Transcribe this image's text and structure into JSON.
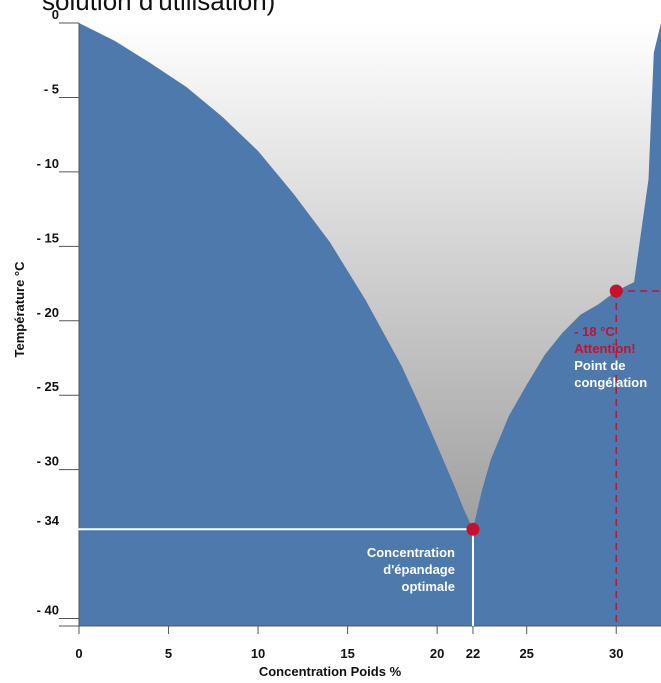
{
  "header": {
    "partial_title": "solution d'utilisation)"
  },
  "chart_data": {
    "type": "area",
    "xlabel": "Concentration Poids %",
    "ylabel": "Température °C",
    "x_ticks": [
      0,
      5,
      10,
      15,
      20,
      22,
      25,
      30
    ],
    "y_ticks": [
      {
        "value": 0,
        "label": "0"
      },
      {
        "value": -5,
        "label": "- 5"
      },
      {
        "value": -10,
        "label": "- 10"
      },
      {
        "value": -15,
        "label": "- 15"
      },
      {
        "value": -20,
        "label": "- 20"
      },
      {
        "value": -25,
        "label": "- 25"
      },
      {
        "value": -30,
        "label": "- 30"
      },
      {
        "value": -34,
        "label": "- 34"
      },
      {
        "value": -40,
        "label": "- 40"
      }
    ],
    "xlim": [
      0,
      32.5
    ],
    "ylim": [
      -40.5,
      0
    ],
    "freezing_curve": [
      {
        "x": 0,
        "y": 0
      },
      {
        "x": 2,
        "y": -1.2
      },
      {
        "x": 4,
        "y": -2.7
      },
      {
        "x": 6,
        "y": -4.3
      },
      {
        "x": 8,
        "y": -6.3
      },
      {
        "x": 10,
        "y": -8.6
      },
      {
        "x": 12,
        "y": -11.5
      },
      {
        "x": 14,
        "y": -14.7
      },
      {
        "x": 16,
        "y": -18.6
      },
      {
        "x": 18,
        "y": -23.0
      },
      {
        "x": 19,
        "y": -25.6
      },
      {
        "x": 20,
        "y": -28.4
      },
      {
        "x": 21,
        "y": -31.2
      },
      {
        "x": 21.5,
        "y": -32.7
      },
      {
        "x": 22,
        "y": -34
      },
      {
        "x": 22.5,
        "y": -31.4
      },
      {
        "x": 23,
        "y": -29.3
      },
      {
        "x": 24,
        "y": -26.4
      },
      {
        "x": 25,
        "y": -24.3
      },
      {
        "x": 26,
        "y": -22.3
      },
      {
        "x": 27,
        "y": -20.8
      },
      {
        "x": 28,
        "y": -19.6
      },
      {
        "x": 29,
        "y": -18.9
      },
      {
        "x": 30,
        "y": -18
      },
      {
        "x": 31,
        "y": -17.4
      },
      {
        "x": 31.8,
        "y": -10.5
      },
      {
        "x": 32.1,
        "y": -2
      },
      {
        "x": 32.5,
        "y": 0
      }
    ],
    "points": [
      {
        "x": 22,
        "y": -34,
        "label_lines": [
          "Concentration",
          "d'épandage",
          "optimale"
        ],
        "color": "#c8102e"
      },
      {
        "x": 30,
        "y": -18,
        "label_red_lines": [
          "- 18 °C",
          "Attention!"
        ],
        "label_white_lines": [
          "Point de",
          "congélation"
        ],
        "color": "#c8102e"
      }
    ],
    "colors": {
      "fill": "#4e79ac",
      "gradient_top": "#ffffff",
      "gradient_bottom": "#8c8c8c",
      "guide_white": "#ffffff",
      "guide_red": "#c8102e"
    },
    "grid": false
  }
}
